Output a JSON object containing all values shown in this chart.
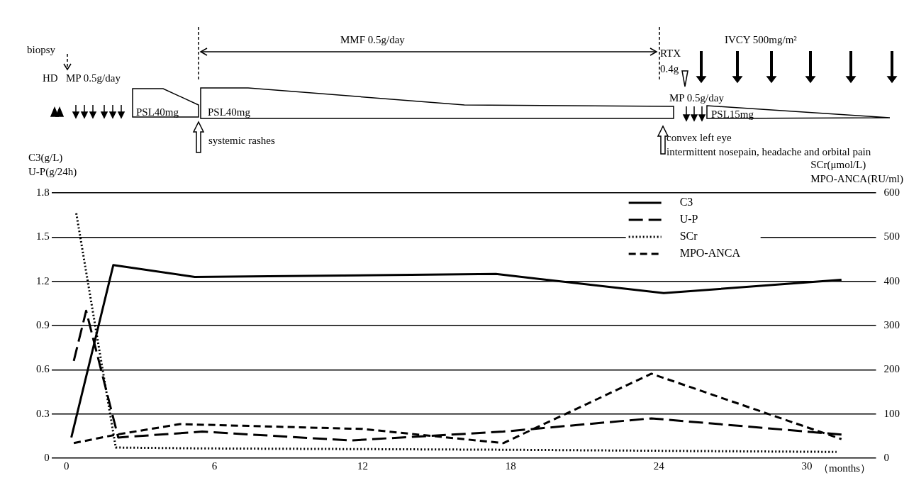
{
  "chart_data": {
    "type": "line",
    "xlabel": "（months）",
    "ylabel": "C3(g/L)\nU-P(g/24h)",
    "y2label": "SCr(μmol/L)\nMPO-ANCA(RU/ml)",
    "xlim": [
      -0.6,
      32.8
    ],
    "xticks": [
      0,
      6,
      12,
      18,
      24,
      30
    ],
    "ylim": [
      0,
      1.8
    ],
    "yticks": [
      0,
      0.3,
      0.6,
      0.9,
      1.2,
      1.5,
      1.8
    ],
    "y2lim": [
      0,
      600
    ],
    "y2ticks": [
      0,
      100,
      200,
      300,
      400,
      500,
      600
    ],
    "grid": "y",
    "legend": "top right",
    "marker": "none",
    "series": [
      {
        "name": "C3",
        "color": "#000000",
        "line_style": "solid",
        "x": [
          0.2,
          1.9,
          5.2,
          17.4,
          24.2,
          31.4
        ],
        "values": [
          0.14,
          1.31,
          1.23,
          1.25,
          1.12,
          1.21
        ]
      },
      {
        "name": "U-P",
        "color": "#000000",
        "line_style": "longdash",
        "x": [
          0.3,
          0.8,
          2.1,
          5.5,
          11.5,
          17.7,
          23.7,
          31.4
        ],
        "values": [
          0.66,
          1.0,
          0.14,
          0.18,
          0.12,
          0.18,
          0.27,
          0.16
        ]
      },
      {
        "name": "SCr",
        "color": "#000000",
        "line_style": "dotted",
        "axis": "y2",
        "x": [
          0.4,
          2.0,
          5.6,
          17.7,
          31.2
        ],
        "values": [
          554,
          24,
          22,
          19,
          14
        ]
      },
      {
        "name": "MPO-ANCA",
        "color": "#000000",
        "line_style": "dashed",
        "axis": "y2",
        "x": [
          0.3,
          2.0,
          4.6,
          12.0,
          17.7,
          23.7,
          31.4
        ],
        "values": [
          34,
          53,
          77,
          66,
          34,
          191,
          43
        ]
      }
    ],
    "annotations": [
      "biopsy",
      "HD",
      "MP 0.5g/day",
      "PSL40mg",
      "PSL40mg",
      "systemic rashes",
      "MMF 0.5g/day",
      "RTX\n0.4g",
      "IVCY 500mg/m²",
      "MP 0.5g/day",
      "PSL15mg",
      "convex left eye",
      "intermittent nosepain, headache and orbital pain"
    ]
  }
}
